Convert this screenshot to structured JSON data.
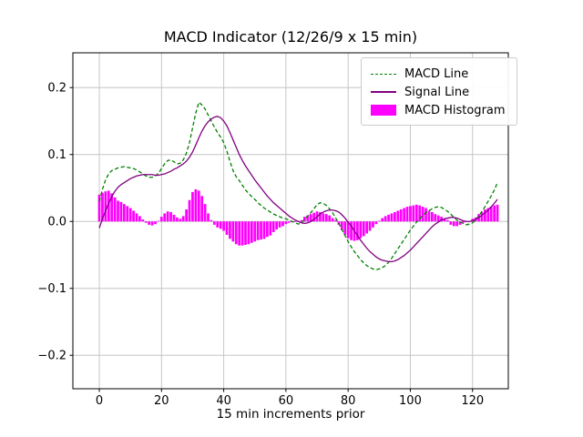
{
  "figure": {
    "title": "MACD Indicator (12/26/9 x 15 min)",
    "xlabel": "15 min increments prior",
    "background": "#ffffff"
  },
  "legend": {
    "items": [
      {
        "label": "MACD Line",
        "style": "dashed-line",
        "color": "#008000"
      },
      {
        "label": "Signal Line",
        "style": "solid-line",
        "color": "#800080"
      },
      {
        "label": "MACD Histogram",
        "style": "patch",
        "color": "#ff00ff"
      }
    ]
  },
  "axes": {
    "xlim": [
      -8.5,
      131.5
    ],
    "ylim": [
      -0.25,
      0.252
    ],
    "xticks": [
      0,
      20,
      40,
      60,
      80,
      100,
      120
    ],
    "xtick_labels": [
      "0",
      "20",
      "40",
      "60",
      "80",
      "100",
      "120"
    ],
    "yticks": [
      -0.2,
      -0.1,
      0.0,
      0.1,
      0.2
    ],
    "ytick_labels": [
      "−0.2",
      "−0.1",
      "0.0",
      "0.1",
      "0.2"
    ],
    "grid": true,
    "grid_color": "#c6c6c6",
    "spine_color": "#000000"
  },
  "chart_data": {
    "type": "line",
    "title": "MACD Indicator (12/26/9 x 15 min)",
    "xlabel": "15 min increments prior",
    "ylabel": "",
    "x_range": [
      0,
      128
    ],
    "x_step": 1,
    "xlim": [
      -8.5,
      131.5
    ],
    "ylim": [
      -0.25,
      0.252
    ],
    "legend_position": "upper right",
    "bar_width": 0.8,
    "series": [
      {
        "name": "MACD Line",
        "type": "line",
        "color": "#008000",
        "dash": "dashed",
        "values": [
          0.03,
          0.048,
          0.062,
          0.071,
          0.076,
          0.078,
          0.08,
          0.081,
          0.082,
          0.081,
          0.08,
          0.079,
          0.077,
          0.074,
          0.071,
          0.068,
          0.066,
          0.066,
          0.068,
          0.072,
          0.079,
          0.086,
          0.091,
          0.092,
          0.089,
          0.086,
          0.087,
          0.092,
          0.102,
          0.118,
          0.14,
          0.162,
          0.178,
          0.174,
          0.168,
          0.159,
          0.15,
          0.141,
          0.133,
          0.126,
          0.118,
          0.105,
          0.09,
          0.076,
          0.067,
          0.061,
          0.054,
          0.047,
          0.042,
          0.037,
          0.033,
          0.028,
          0.024,
          0.02,
          0.017,
          0.014,
          0.011,
          0.009,
          0.007,
          0.005,
          0.004,
          0.002,
          0.0,
          -0.002,
          -0.004,
          -0.002,
          0.003,
          0.008,
          0.013,
          0.019,
          0.025,
          0.028,
          0.027,
          0.024,
          0.019,
          0.013,
          0.005,
          -0.003,
          -0.012,
          -0.021,
          -0.03,
          -0.038,
          -0.045,
          -0.051,
          -0.057,
          -0.062,
          -0.066,
          -0.069,
          -0.071,
          -0.072,
          -0.071,
          -0.069,
          -0.066,
          -0.061,
          -0.055,
          -0.048,
          -0.041,
          -0.034,
          -0.027,
          -0.02,
          -0.013,
          -0.007,
          -0.001,
          0.004,
          0.009,
          0.013,
          0.016,
          0.019,
          0.021,
          0.022,
          0.021,
          0.018,
          0.015,
          0.011,
          0.006,
          0.002,
          -0.001,
          -0.003,
          -0.005,
          -0.004,
          -0.002,
          0.002,
          0.008,
          0.015,
          0.022,
          0.03,
          0.038,
          0.047,
          0.058
        ]
      },
      {
        "name": "Signal Line",
        "type": "line",
        "color": "#800080",
        "dash": "solid",
        "values": [
          -0.01,
          0.004,
          0.016,
          0.027,
          0.037,
          0.045,
          0.051,
          0.055,
          0.058,
          0.061,
          0.064,
          0.066,
          0.068,
          0.069,
          0.07,
          0.07,
          0.07,
          0.07,
          0.069,
          0.069,
          0.07,
          0.071,
          0.073,
          0.075,
          0.078,
          0.08,
          0.083,
          0.086,
          0.09,
          0.096,
          0.104,
          0.114,
          0.125,
          0.135,
          0.143,
          0.149,
          0.153,
          0.156,
          0.157,
          0.155,
          0.15,
          0.143,
          0.133,
          0.122,
          0.111,
          0.1,
          0.091,
          0.083,
          0.076,
          0.069,
          0.062,
          0.056,
          0.05,
          0.044,
          0.038,
          0.033,
          0.028,
          0.024,
          0.02,
          0.016,
          0.012,
          0.008,
          0.005,
          0.002,
          0.0,
          -0.002,
          -0.003,
          -0.002,
          0.0,
          0.003,
          0.007,
          0.011,
          0.014,
          0.016,
          0.017,
          0.017,
          0.016,
          0.014,
          0.01,
          0.005,
          -0.001,
          -0.007,
          -0.014,
          -0.021,
          -0.028,
          -0.034,
          -0.04,
          -0.045,
          -0.049,
          -0.053,
          -0.056,
          -0.058,
          -0.059,
          -0.06,
          -0.06,
          -0.059,
          -0.057,
          -0.054,
          -0.051,
          -0.047,
          -0.043,
          -0.038,
          -0.033,
          -0.028,
          -0.023,
          -0.018,
          -0.013,
          -0.008,
          -0.004,
          -0.001,
          0.002,
          0.004,
          0.005,
          0.006,
          0.006,
          0.005,
          0.003,
          0.001,
          0.0,
          0.0,
          0.001,
          0.003,
          0.006,
          0.009,
          0.013,
          0.017,
          0.022,
          0.027,
          0.033
        ]
      },
      {
        "name": "MACD Histogram",
        "type": "bar",
        "color": "#ff00ff",
        "values": [
          0.04,
          0.043,
          0.045,
          0.046,
          0.042,
          0.036,
          0.031,
          0.029,
          0.026,
          0.023,
          0.02,
          0.016,
          0.012,
          0.008,
          0.003,
          -0.002,
          -0.005,
          -0.006,
          -0.004,
          0.001,
          0.007,
          0.012,
          0.015,
          0.014,
          0.01,
          0.006,
          0.004,
          0.008,
          0.018,
          0.032,
          0.044,
          0.048,
          0.046,
          0.038,
          0.026,
          0.012,
          0.002,
          -0.005,
          -0.009,
          -0.011,
          -0.014,
          -0.02,
          -0.026,
          -0.03,
          -0.034,
          -0.036,
          -0.036,
          -0.035,
          -0.034,
          -0.032,
          -0.03,
          -0.028,
          -0.027,
          -0.026,
          -0.023,
          -0.021,
          -0.016,
          -0.012,
          -0.009,
          -0.007,
          -0.004,
          -0.002,
          -0.001,
          -0.001,
          0.0,
          0.002,
          0.007,
          0.009,
          0.011,
          0.013,
          0.015,
          0.014,
          0.012,
          0.011,
          0.009,
          0.005,
          0.002,
          -0.005,
          -0.013,
          -0.02,
          -0.025,
          -0.028,
          -0.029,
          -0.028,
          -0.025,
          -0.022,
          -0.018,
          -0.014,
          -0.009,
          -0.004,
          0.001,
          0.005,
          0.008,
          0.01,
          0.012,
          0.014,
          0.016,
          0.018,
          0.02,
          0.022,
          0.023,
          0.024,
          0.025,
          0.024,
          0.022,
          0.02,
          0.016,
          0.014,
          0.011,
          0.009,
          0.007,
          0.004,
          0.002,
          -0.005,
          -0.007,
          -0.007,
          -0.005,
          -0.002,
          -0.001,
          0.001,
          0.004,
          0.006,
          0.011,
          0.014,
          0.018,
          0.02,
          0.022,
          0.024,
          0.025
        ]
      }
    ]
  }
}
